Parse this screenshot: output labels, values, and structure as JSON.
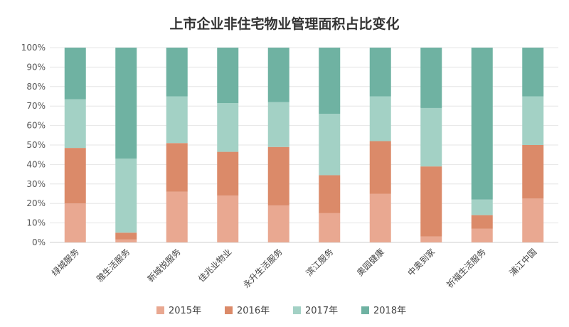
{
  "chart_data": {
    "type": "bar",
    "stacked": true,
    "percent": true,
    "title": "上市企业非住宅物业管理面积占比变化",
    "xlabel": "",
    "ylabel": "",
    "ylim": [
      0,
      100
    ],
    "yticks": [
      "0%",
      "10%",
      "20%",
      "30%",
      "40%",
      "50%",
      "60%",
      "70%",
      "80%",
      "90%",
      "100%"
    ],
    "categories": [
      "绿城服务",
      "雅生活服务",
      "新城悦服务",
      "佳兆业物业",
      "永升生活服务",
      "滨江服务",
      "奥园健康",
      "中奥到家",
      "祈福生活服务",
      "浦江中国"
    ],
    "series": [
      {
        "name": "2015年",
        "color": "#e9a891",
        "values": [
          20,
          1.5,
          26,
          24,
          19,
          15,
          25,
          3,
          7,
          22.5
        ]
      },
      {
        "name": "2016年",
        "color": "#db8a69",
        "values": [
          28.5,
          3.5,
          25,
          22.5,
          30,
          19.5,
          27,
          36,
          7,
          27.5
        ]
      },
      {
        "name": "2017年",
        "color": "#a3d1c5",
        "values": [
          25,
          38,
          24,
          25,
          23,
          31.5,
          23,
          30,
          8,
          25
        ]
      },
      {
        "name": "2018年",
        "color": "#6fb2a2",
        "values": [
          26.5,
          57,
          25,
          28.5,
          28,
          34,
          25,
          31,
          78,
          25
        ]
      }
    ],
    "legend_position": "bottom",
    "grid": true
  }
}
